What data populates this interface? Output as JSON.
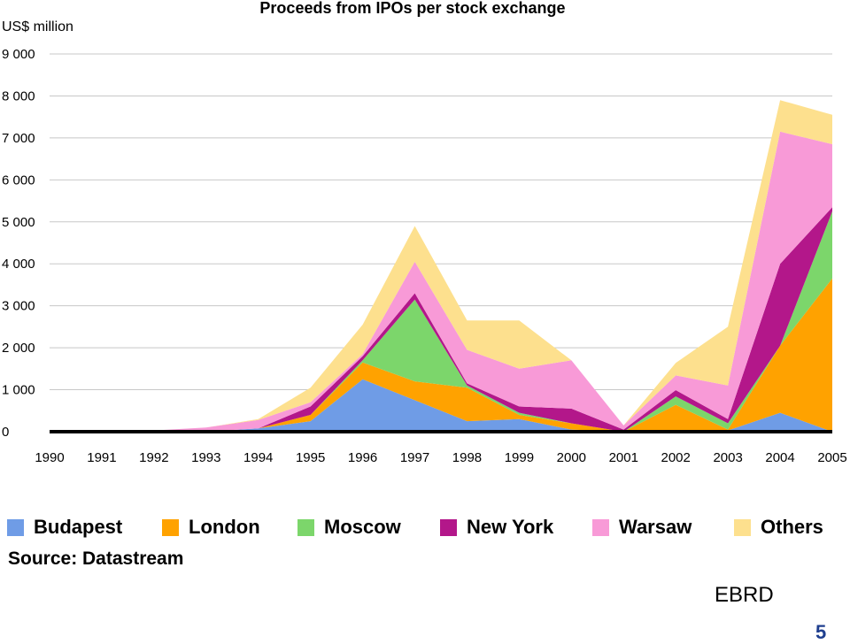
{
  "chart_data": {
    "type": "area",
    "stacked": true,
    "title": "Proceeds from IPOs per stock exchange",
    "ylabel": "US$ million",
    "xlabel": "",
    "x": [
      "1990",
      "1991",
      "1992",
      "1993",
      "1994",
      "1995",
      "1996",
      "1997",
      "1998",
      "1999",
      "2000",
      "2001",
      "2002",
      "2003",
      "2004",
      "2005"
    ],
    "ylim": [
      0,
      9000
    ],
    "yticks": [
      0,
      1000,
      2000,
      3000,
      4000,
      5000,
      6000,
      7000,
      8000,
      9000
    ],
    "ytick_labels": [
      "0",
      "1 000",
      "2 000",
      "3 000",
      "4 000",
      "5 000",
      "6 000",
      "7 000",
      "8 000",
      "9 000"
    ],
    "grid": true,
    "legend_position": "bottom",
    "series": [
      {
        "name": "Budapest",
        "color": "#6f9ce6",
        "values": [
          0,
          0,
          0,
          0,
          80,
          250,
          1250,
          750,
          250,
          300,
          50,
          0,
          40,
          30,
          450,
          0
        ]
      },
      {
        "name": "London",
        "color": "#ffa200",
        "values": [
          0,
          0,
          0,
          0,
          0,
          150,
          400,
          450,
          800,
          100,
          150,
          0,
          600,
          20,
          1600,
          3650
        ]
      },
      {
        "name": "Moscow",
        "color": "#7cd66b",
        "values": [
          0,
          0,
          0,
          0,
          0,
          0,
          50,
          1950,
          50,
          50,
          0,
          0,
          200,
          150,
          0,
          1600
        ]
      },
      {
        "name": "New York",
        "color": "#b3178a",
        "values": [
          0,
          0,
          0,
          0,
          0,
          200,
          100,
          150,
          50,
          150,
          350,
          50,
          150,
          100,
          1950,
          100
        ]
      },
      {
        "name": "Warsaw",
        "color": "#f89ad7",
        "values": [
          0,
          0,
          30,
          100,
          200,
          100,
          50,
          750,
          800,
          900,
          1150,
          100,
          350,
          800,
          3150,
          1500
        ]
      },
      {
        "name": "Others",
        "color": "#fde08e",
        "values": [
          0,
          0,
          0,
          0,
          20,
          350,
          700,
          850,
          700,
          1150,
          0,
          0,
          300,
          1400,
          750,
          700
        ]
      }
    ]
  },
  "source_label": "Source: Datastream",
  "footer": {
    "org": "EBRD",
    "page_number": "5"
  }
}
